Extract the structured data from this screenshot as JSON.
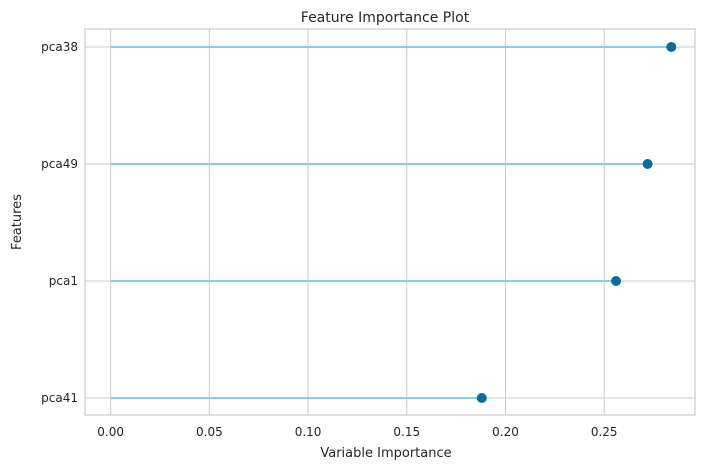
{
  "chart_data": {
    "type": "lollipop",
    "title": "Feature Importance Plot",
    "xlabel": "Variable Importance",
    "ylabel": "Features",
    "categories": [
      "pca38",
      "pca49",
      "pca1",
      "pca41"
    ],
    "values": [
      0.284,
      0.272,
      0.256,
      0.188
    ],
    "xlim": [
      -0.013,
      0.296
    ],
    "xticks": [
      0.0,
      0.05,
      0.1,
      0.15,
      0.2,
      0.25
    ],
    "xtick_labels": [
      "0.00",
      "0.05",
      "0.10",
      "0.15",
      "0.20",
      "0.25"
    ],
    "grid": true,
    "colors": {
      "stem": "#87ceeb",
      "marker": "#0b6e99",
      "grid": "#cccccc"
    }
  }
}
